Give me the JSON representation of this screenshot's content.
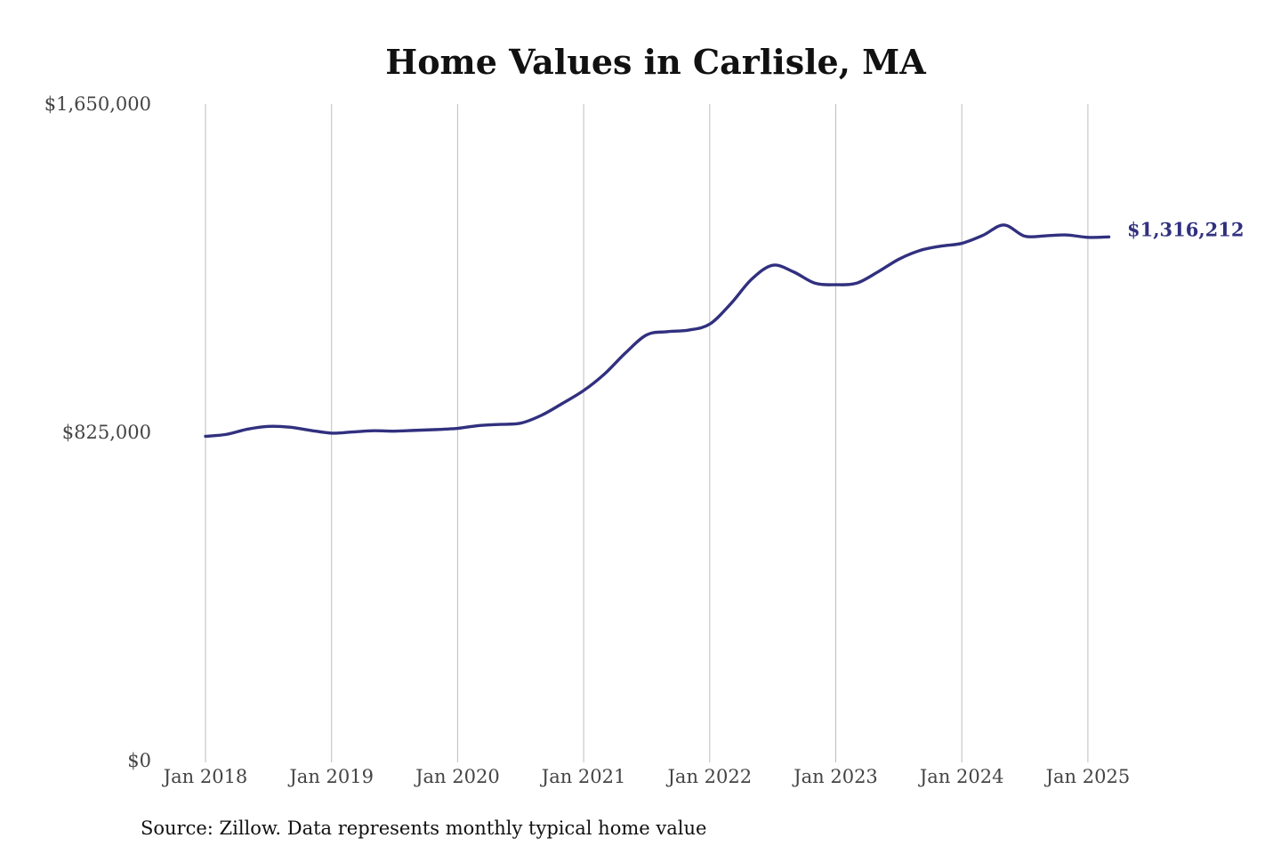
{
  "chart_data": {
    "type": "line",
    "title": "Home Values in Carlisle, MA",
    "xlabel": "",
    "ylabel": "",
    "ylim": [
      0,
      1650000
    ],
    "y_ticks": [
      "$1,650,000",
      "$825,000",
      "$0"
    ],
    "y_tick_values": [
      1650000,
      825000,
      0
    ],
    "x_ticks": [
      "Jan 2018",
      "Jan 2019",
      "Jan 2020",
      "Jan 2021",
      "Jan 2022",
      "Jan 2023",
      "Jan 2024",
      "Jan 2025"
    ],
    "x_tick_values": [
      "2018-01",
      "2019-01",
      "2020-01",
      "2021-01",
      "2022-01",
      "2023-01",
      "2024-01",
      "2025-01"
    ],
    "grid": "vertical",
    "line_color": "#31307f",
    "series": [
      {
        "x": [
          "2018-01",
          "2018-03",
          "2018-05",
          "2018-07",
          "2018-09",
          "2018-11",
          "2019-01",
          "2019-03",
          "2019-05",
          "2019-07",
          "2019-09",
          "2019-11",
          "2020-01",
          "2020-03",
          "2020-05",
          "2020-07",
          "2020-09",
          "2020-11",
          "2021-01",
          "2021-03",
          "2021-05",
          "2021-07",
          "2021-09",
          "2021-11",
          "2022-01",
          "2022-03",
          "2022-05",
          "2022-07",
          "2022-09",
          "2022-11",
          "2023-01",
          "2023-03",
          "2023-05",
          "2023-07",
          "2023-09",
          "2023-11",
          "2024-01",
          "2024-03",
          "2024-05",
          "2024-07",
          "2024-09",
          "2024-11",
          "2025-01",
          "2025-03"
        ],
        "values": [
          815000,
          820000,
          833000,
          840000,
          838000,
          830000,
          823000,
          826000,
          829000,
          828000,
          830000,
          832000,
          835000,
          842000,
          845000,
          848000,
          868000,
          898000,
          930000,
          972000,
          1025000,
          1070000,
          1078000,
          1082000,
          1097000,
          1148000,
          1210000,
          1245000,
          1228000,
          1200000,
          1196000,
          1200000,
          1228000,
          1260000,
          1282000,
          1293000,
          1300000,
          1320000,
          1346000,
          1318000,
          1319000,
          1321000,
          1315000,
          1316212
        ]
      }
    ],
    "end_label": "$1,316,212",
    "source": "Source: Zillow. Data represents monthly typical home value"
  }
}
